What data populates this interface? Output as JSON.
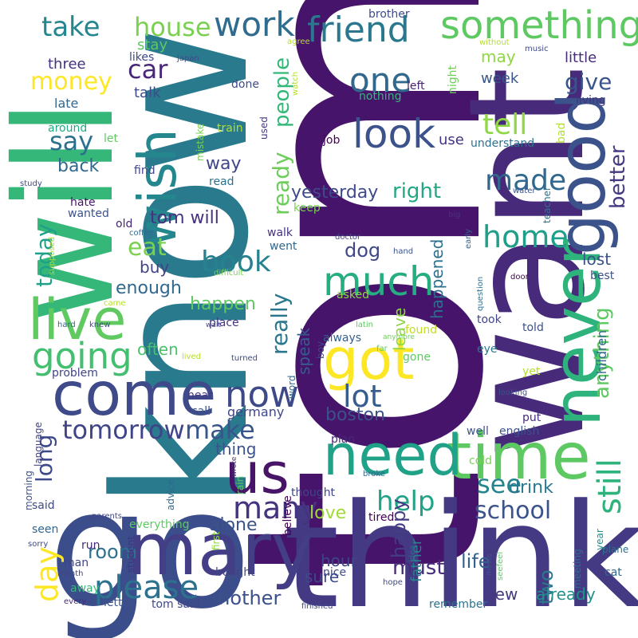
{
  "words": [
    {
      "text": "tom",
      "color": "#46146b"
    },
    {
      "text": "know",
      "color": "#2a7a8e"
    },
    {
      "text": "want",
      "color": "#472a7a"
    },
    {
      "text": "go",
      "color": "#3b4e8b"
    },
    {
      "text": "think",
      "color": "#443a83"
    },
    {
      "text": "will",
      "color": "#35b779"
    },
    {
      "text": "time",
      "color": "#5ec962"
    },
    {
      "text": "mary",
      "color": "#433e85"
    },
    {
      "text": "come",
      "color": "#3e4a89"
    },
    {
      "text": "never",
      "color": "#2eb37c"
    },
    {
      "text": "need",
      "color": "#1fa287"
    },
    {
      "text": "good",
      "color": "#3b528b"
    },
    {
      "text": "wish",
      "color": "#24878e"
    },
    {
      "text": "live",
      "color": "#60ca60"
    },
    {
      "text": "us",
      "color": "#481467"
    },
    {
      "text": "got",
      "color": "#fde725"
    },
    {
      "text": "much",
      "color": "#26ad81"
    },
    {
      "text": "going",
      "color": "#44bf70"
    },
    {
      "text": "now",
      "color": "#3e4989"
    },
    {
      "text": "look",
      "color": "#3b528b"
    },
    {
      "text": "something",
      "color": "#5ec962"
    },
    {
      "text": "friend",
      "color": "#2a788e"
    },
    {
      "text": "work",
      "color": "#2f6c8e"
    },
    {
      "text": "one",
      "color": "#31688e"
    },
    {
      "text": "lot",
      "color": "#365d8d"
    },
    {
      "text": "please",
      "color": "#2c728e"
    },
    {
      "text": "many",
      "color": "#46337f"
    },
    {
      "text": "tomorrow",
      "color": "#404588"
    },
    {
      "text": "make",
      "color": "#39568c"
    },
    {
      "text": "home",
      "color": "#1f9e89"
    },
    {
      "text": "house",
      "color": "#7ad151"
    },
    {
      "text": "take",
      "color": "#24868e"
    },
    {
      "text": "still",
      "color": "#2eb37c"
    },
    {
      "text": "made",
      "color": "#31688e"
    },
    {
      "text": "book",
      "color": "#26828e"
    },
    {
      "text": "help",
      "color": "#20a386"
    },
    {
      "text": "day",
      "color": "#fde725"
    },
    {
      "text": "see",
      "color": "#25858e"
    },
    {
      "text": "tell",
      "color": "#8fd744"
    },
    {
      "text": "school",
      "color": "#3b528b"
    },
    {
      "text": "money",
      "color": "#fde725"
    },
    {
      "text": "long",
      "color": "#3e4989"
    },
    {
      "text": "today",
      "color": "#1fa088"
    },
    {
      "text": "really",
      "color": "#2a788e"
    },
    {
      "text": "ready",
      "color": "#6ccd5a"
    },
    {
      "text": "people",
      "color": "#35b779"
    },
    {
      "text": "say",
      "color": "#2d708e"
    },
    {
      "text": "eat",
      "color": "#7ad151"
    },
    {
      "text": "car",
      "color": "#482878"
    },
    {
      "text": "give",
      "color": "#39568c"
    },
    {
      "text": "better",
      "color": "#443983"
    },
    {
      "text": "anything",
      "color": "#5ec962"
    },
    {
      "text": "right",
      "color": "#22a785"
    },
    {
      "text": "room",
      "color": "#2c728e"
    },
    {
      "text": "must",
      "color": "#472c7a"
    },
    {
      "text": "two",
      "color": "#2a788e"
    },
    {
      "text": "mother",
      "color": "#3b518b"
    },
    {
      "text": "happy",
      "color": "#433d84"
    },
    {
      "text": "yesterday",
      "color": "#3e4a89"
    },
    {
      "text": "dog",
      "color": "#3f4788"
    },
    {
      "text": "tom will",
      "color": "#46327e"
    },
    {
      "text": "boston",
      "color": "#3b528b"
    },
    {
      "text": "enough",
      "color": "#31688e"
    },
    {
      "text": "happen",
      "color": "#5ec962"
    },
    {
      "text": "back",
      "color": "#31688e"
    },
    {
      "text": "way",
      "color": "#3f4788"
    },
    {
      "text": "speak",
      "color": "#365c8d"
    },
    {
      "text": "leave",
      "color": "#8fd744"
    },
    {
      "text": "happened",
      "color": "#2d708e"
    },
    {
      "text": "lost",
      "color": "#3b528b"
    },
    {
      "text": "drink",
      "color": "#2a778e"
    },
    {
      "text": "love",
      "color": "#a0da39"
    },
    {
      "text": "alone",
      "color": "#3b528b"
    },
    {
      "text": "life",
      "color": "#34618d"
    },
    {
      "text": "hour",
      "color": "#404588"
    },
    {
      "text": "father",
      "color": "#25848e"
    },
    {
      "text": "already",
      "color": "#21918c"
    },
    {
      "text": "new",
      "color": "#453781"
    },
    {
      "text": "sure",
      "color": "#3e4a89"
    },
    {
      "text": "buy",
      "color": "#414287"
    },
    {
      "text": "often",
      "color": "#4ac16d"
    },
    {
      "text": "thing",
      "color": "#3b528b"
    },
    {
      "text": "germany",
      "color": "#3f4788"
    },
    {
      "text": "children",
      "color": "#31688e"
    },
    {
      "text": "little",
      "color": "#472c7a"
    },
    {
      "text": "may",
      "color": "#8fd744"
    },
    {
      "text": "week",
      "color": "#39568c"
    },
    {
      "text": "three",
      "color": "#46327e"
    },
    {
      "text": "stay",
      "color": "#5ec962"
    },
    {
      "text": "talk",
      "color": "#3e4a89"
    },
    {
      "text": "late",
      "color": "#31688e"
    },
    {
      "text": "likes",
      "color": "#3f4788"
    },
    {
      "text": "living",
      "color": "#46337f"
    },
    {
      "text": "use",
      "color": "#46337f"
    },
    {
      "text": "understand",
      "color": "#2d708e"
    },
    {
      "text": "job",
      "color": "#440154"
    },
    {
      "text": "nothing",
      "color": "#35b779"
    },
    {
      "text": "left",
      "color": "#482173"
    },
    {
      "text": "night",
      "color": "#6ece58"
    },
    {
      "text": "done",
      "color": "#3e4a89"
    },
    {
      "text": "mistake",
      "color": "#7ad151"
    },
    {
      "text": "used",
      "color": "#453781"
    },
    {
      "text": "let",
      "color": "#5ec962"
    },
    {
      "text": "around",
      "color": "#22a884"
    },
    {
      "text": "train",
      "color": "#b5de2b"
    },
    {
      "text": "find",
      "color": "#404588"
    },
    {
      "text": "read",
      "color": "#2c728e"
    },
    {
      "text": "keep",
      "color": "#7ad151"
    },
    {
      "text": "walk",
      "color": "#46327e"
    },
    {
      "text": "went",
      "color": "#31688e"
    },
    {
      "text": "hate",
      "color": "#481668"
    },
    {
      "text": "wanted",
      "color": "#3b528b"
    },
    {
      "text": "old",
      "color": "#482475"
    },
    {
      "text": "asked",
      "color": "#8fd744"
    },
    {
      "text": "place",
      "color": "#46327e"
    },
    {
      "text": "always",
      "color": "#34618d"
    },
    {
      "text": "took",
      "color": "#414487"
    },
    {
      "text": "told",
      "color": "#3b528b"
    },
    {
      "text": "found",
      "color": "#c2df23"
    },
    {
      "text": "gone",
      "color": "#5ec962"
    },
    {
      "text": "eye",
      "color": "#2a788e"
    },
    {
      "text": "yet",
      "color": "#b5de2b"
    },
    {
      "text": "problem",
      "color": "#414487"
    },
    {
      "text": "hear",
      "color": "#453882"
    },
    {
      "text": "call",
      "color": "#3b528b"
    },
    {
      "text": "language",
      "color": "#414487"
    },
    {
      "text": "morning",
      "color": "#3b528b"
    },
    {
      "text": "said",
      "color": "#3e4a89"
    },
    {
      "text": "seen",
      "color": "#31688e"
    },
    {
      "text": "run",
      "color": "#482878"
    },
    {
      "text": "everything",
      "color": "#5ec962"
    },
    {
      "text": "man",
      "color": "#414487"
    },
    {
      "text": "away",
      "color": "#35b779"
    },
    {
      "text": "letter",
      "color": "#3b528b"
    },
    {
      "text": "tom said",
      "color": "#3f4788"
    },
    {
      "text": "bought",
      "color": "#414487"
    },
    {
      "text": "first",
      "color": "#8fd744"
    },
    {
      "text": "believe",
      "color": "#440154"
    },
    {
      "text": "nice",
      "color": "#3e4a89"
    },
    {
      "text": "tired",
      "color": "#440154"
    },
    {
      "text": "well",
      "color": "#3b528b"
    },
    {
      "text": "english",
      "color": "#3b528b"
    },
    {
      "text": "put",
      "color": "#472d7b"
    },
    {
      "text": "cold",
      "color": "#7ad151"
    },
    {
      "text": "remember",
      "color": "#2c728e"
    },
    {
      "text": "plan",
      "color": "#482878"
    },
    {
      "text": "word",
      "color": "#31688e"
    },
    {
      "text": "boy",
      "color": "#3f4788"
    },
    {
      "text": "year",
      "color": "#21918c"
    },
    {
      "text": "plane",
      "color": "#2c728e"
    },
    {
      "text": "cat",
      "color": "#31688e"
    },
    {
      "text": "meeting",
      "color": "#2d708e"
    },
    {
      "text": "seefeel",
      "color": "#5ec962"
    },
    {
      "text": "idea",
      "color": "#31688e"
    },
    {
      "text": "movie",
      "color": "#3b528b"
    },
    {
      "text": "hope",
      "color": "#3e4a89"
    },
    {
      "text": "finished",
      "color": "#3e4a89"
    },
    {
      "text": "every",
      "color": "#482878"
    },
    {
      "text": "month",
      "color": "#414487"
    },
    {
      "text": "student",
      "color": "#46327e"
    },
    {
      "text": "advice",
      "color": "#31688e"
    },
    {
      "text": "rain",
      "color": "#5ec962"
    },
    {
      "text": "wrote",
      "color": "#46337f"
    },
    {
      "text": "thought",
      "color": "#404588"
    },
    {
      "text": "parents",
      "color": "#414487"
    },
    {
      "text": "sorry",
      "color": "#3e4a89"
    },
    {
      "text": "broke",
      "color": "#31688e"
    },
    {
      "text": "looking",
      "color": "#3b528b"
    },
    {
      "text": "lived",
      "color": "#b5de2b"
    },
    {
      "text": "turned",
      "color": "#3e4a89"
    },
    {
      "text": "latin",
      "color": "#5ec962"
    },
    {
      "text": "anymore",
      "color": "#6ece58"
    },
    {
      "text": "far",
      "color": "#5ec962"
    },
    {
      "text": "wait",
      "color": "#414487"
    },
    {
      "text": "knew",
      "color": "#3e4a89"
    },
    {
      "text": "hard",
      "color": "#31688e"
    },
    {
      "text": "came",
      "color": "#b5de2b"
    },
    {
      "text": "supposed",
      "color": "#b5de2b"
    },
    {
      "text": "coffee",
      "color": "#31688e"
    },
    {
      "text": "difficult",
      "color": "#7ad151"
    },
    {
      "text": "hand",
      "color": "#3b528b"
    },
    {
      "text": "doctor",
      "color": "#3e4a89"
    },
    {
      "text": "early",
      "color": "#31688e"
    },
    {
      "text": "question",
      "color": "#2c728e"
    },
    {
      "text": "door",
      "color": "#440154"
    },
    {
      "text": "best",
      "color": "#3b528b"
    },
    {
      "text": "water",
      "color": "#3b528b"
    },
    {
      "text": "teacher",
      "color": "#2c728e"
    },
    {
      "text": "big",
      "color": "#46327e"
    },
    {
      "text": "bad",
      "color": "#b5de2b"
    },
    {
      "text": "study",
      "color": "#3e4a89"
    },
    {
      "text": "japan",
      "color": "#3e4a89"
    },
    {
      "text": "watch",
      "color": "#b5de2b"
    },
    {
      "text": "agree",
      "color": "#b5de2b"
    },
    {
      "text": "brother",
      "color": "#3e4a89"
    },
    {
      "text": "without",
      "color": "#b5de2b"
    },
    {
      "text": "music",
      "color": "#3e4a89"
    }
  ]
}
